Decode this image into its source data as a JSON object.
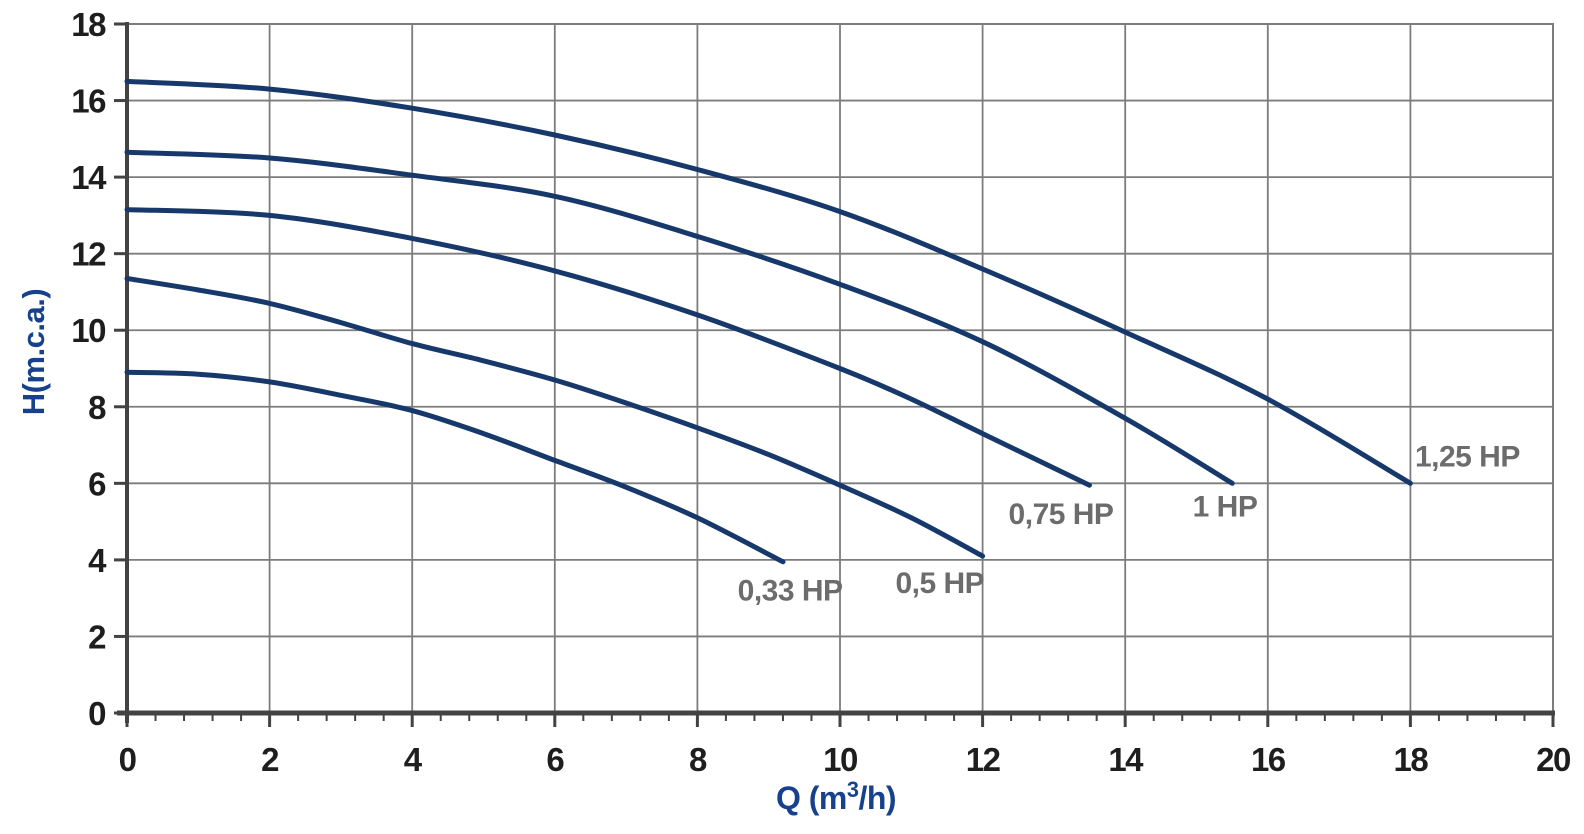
{
  "chart_data": {
    "type": "line",
    "title": "",
    "xlabel": "Q (m³/h)",
    "xlabel_parts": {
      "prefix": "Q (m",
      "sup": "3",
      "suffix": "/h)"
    },
    "ylabel": "H(m.c.a.)",
    "xlim": [
      0,
      20
    ],
    "ylim": [
      0,
      18
    ],
    "x_major_tick_step": 2,
    "x_minor_tick_step": 0.4,
    "y_major_tick_step": 2,
    "x_major_ticks": [
      0,
      2,
      4,
      6,
      8,
      10,
      12,
      14,
      16,
      18,
      20
    ],
    "y_major_ticks": [
      0,
      2,
      4,
      6,
      8,
      10,
      12,
      14,
      16,
      18
    ],
    "grid": true,
    "legend": "inline-labels",
    "series": [
      {
        "name": "0,33 HP",
        "label_pos": [
          9.3,
          3.2
        ],
        "points": [
          [
            0,
            8.9
          ],
          [
            1,
            8.85
          ],
          [
            2,
            8.65
          ],
          [
            3,
            8.3
          ],
          [
            4,
            7.9
          ],
          [
            5,
            7.3
          ],
          [
            6,
            6.6
          ],
          [
            7,
            5.9
          ],
          [
            8,
            5.1
          ],
          [
            9.2,
            3.95
          ]
        ]
      },
      {
        "name": "0,5 HP",
        "label_pos": [
          11.4,
          3.4
        ],
        "points": [
          [
            0,
            11.35
          ],
          [
            1,
            11.05
          ],
          [
            2,
            10.7
          ],
          [
            3,
            10.2
          ],
          [
            4,
            9.65
          ],
          [
            5,
            9.2
          ],
          [
            6,
            8.7
          ],
          [
            7,
            8.1
          ],
          [
            8,
            7.45
          ],
          [
            9,
            6.75
          ],
          [
            10,
            5.95
          ],
          [
            11,
            5.1
          ],
          [
            12,
            4.1
          ]
        ]
      },
      {
        "name": "0,75 HP",
        "label_pos": [
          13.1,
          5.2
        ],
        "points": [
          [
            0,
            13.15
          ],
          [
            2,
            13.0
          ],
          [
            4,
            12.4
          ],
          [
            6,
            11.55
          ],
          [
            8,
            10.4
          ],
          [
            10,
            9.0
          ],
          [
            11,
            8.2
          ],
          [
            12,
            7.3
          ],
          [
            13.5,
            5.95
          ]
        ]
      },
      {
        "name": "1 HP",
        "label_pos": [
          15.4,
          5.4
        ],
        "points": [
          [
            0,
            14.65
          ],
          [
            2,
            14.5
          ],
          [
            4,
            14.05
          ],
          [
            6,
            13.5
          ],
          [
            8,
            12.45
          ],
          [
            10,
            11.2
          ],
          [
            12,
            9.7
          ],
          [
            14,
            7.7
          ],
          [
            15.5,
            6.0
          ]
        ]
      },
      {
        "name": "1,25 HP",
        "label_pos": [
          18.8,
          6.7
        ],
        "points": [
          [
            0,
            16.5
          ],
          [
            2,
            16.3
          ],
          [
            4,
            15.8
          ],
          [
            6,
            15.1
          ],
          [
            8,
            14.2
          ],
          [
            10,
            13.1
          ],
          [
            12,
            11.6
          ],
          [
            14,
            9.95
          ],
          [
            16,
            8.2
          ],
          [
            18,
            6.0
          ]
        ]
      }
    ],
    "colors": {
      "curve": "#17386b",
      "grid": "#7c7c7c",
      "axis": "#434343",
      "tick_label": "#1e1e1e",
      "axis_title": "#17418c",
      "series_label": "#6c6c6c",
      "background": "#ffffff"
    }
  }
}
